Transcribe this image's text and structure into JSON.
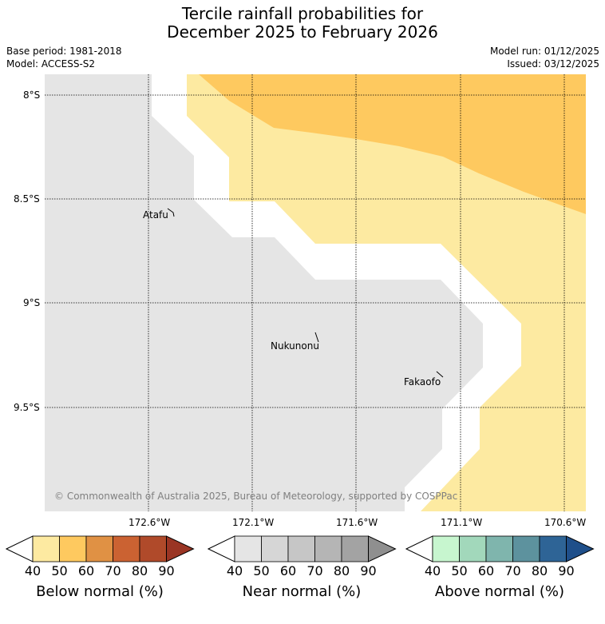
{
  "title_line1": "Tercile rainfall probabilities for",
  "title_line2": "December 2025 to February 2026",
  "base_period": "Base period: 1981-2018",
  "model": "Model: ACCESS-S2",
  "model_run": "Model run: 01/12/2025",
  "issued": "Issued: 03/12/2025",
  "lat_labels": [
    "8°S",
    "8.5°S",
    "9°S",
    "9.5°S"
  ],
  "lon_labels_top_row": [
    "172.6°W",
    "171.6°W",
    "170.6°W"
  ],
  "lon_labels_bottom_row": [
    "172.1°W",
    "171.1°W"
  ],
  "places": [
    "Atafu",
    "Nukunonu",
    "Fakaofo"
  ],
  "copyright": "© Commonwealth of Australia 2025, Bureau of Meteorology, supported by COSPPac",
  "colorbars": [
    {
      "title": "Below normal (%)",
      "ticks": [
        "40",
        "50",
        "60",
        "70",
        "80",
        "90"
      ],
      "colors": [
        "#ffffff",
        "#fdeaa1",
        "#fec95f",
        "#e09144",
        "#cb6232",
        "#b04a2a",
        "#9a3524"
      ]
    },
    {
      "title": "Near normal (%)",
      "ticks": [
        "40",
        "50",
        "60",
        "70",
        "80",
        "90"
      ],
      "colors": [
        "#ffffff",
        "#e5e5e5",
        "#d6d6d6",
        "#c6c6c6",
        "#b5b5b5",
        "#a3a3a3",
        "#8f8f8f"
      ]
    },
    {
      "title": "Above normal (%)",
      "ticks": [
        "40",
        "50",
        "60",
        "70",
        "80",
        "90"
      ],
      "colors": [
        "#ffffff",
        "#c7f6cf",
        "#a2d8bb",
        "#7fb5ad",
        "#5d929e",
        "#2e6496",
        "#1f4f8a"
      ]
    }
  ]
}
